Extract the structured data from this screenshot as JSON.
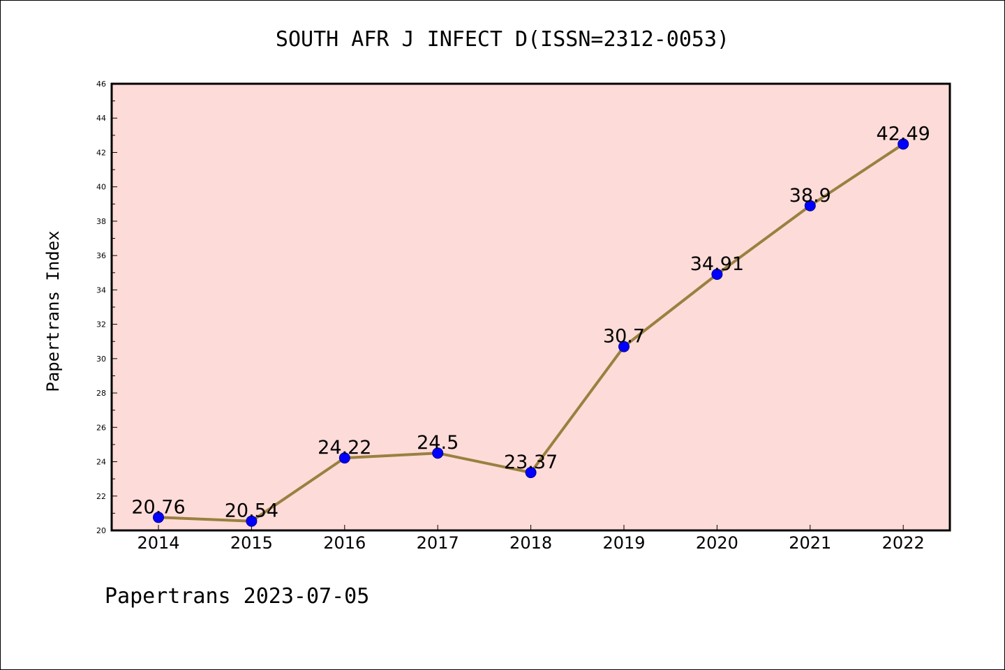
{
  "chart_data": {
    "type": "line",
    "title": "SOUTH AFR J INFECT D(ISSN=2312-0053)",
    "xlabel": "",
    "ylabel": "Papertrans Index",
    "categories": [
      "2014",
      "2015",
      "2016",
      "2017",
      "2018",
      "2019",
      "2020",
      "2021",
      "2022"
    ],
    "values": [
      20.76,
      20.54,
      24.22,
      24.5,
      23.37,
      30.7,
      34.91,
      38.9,
      42.49
    ],
    "data_labels": [
      "20.76",
      "20.54",
      "24.22",
      "24.5",
      "23.37",
      "30.7",
      "34.91",
      "38.9",
      "42.49"
    ],
    "ylim": [
      20,
      46
    ],
    "yticks": [
      "20",
      "22",
      "24",
      "26",
      "28",
      "30",
      "32",
      "34",
      "36",
      "38",
      "40",
      "42",
      "44",
      "46"
    ],
    "grid": false,
    "legend": "none",
    "colors": {
      "plot_background": "#fddbd8",
      "line": "#9a8040",
      "marker": "#0000ff"
    }
  },
  "footer": "Papertrans 2023-07-05"
}
